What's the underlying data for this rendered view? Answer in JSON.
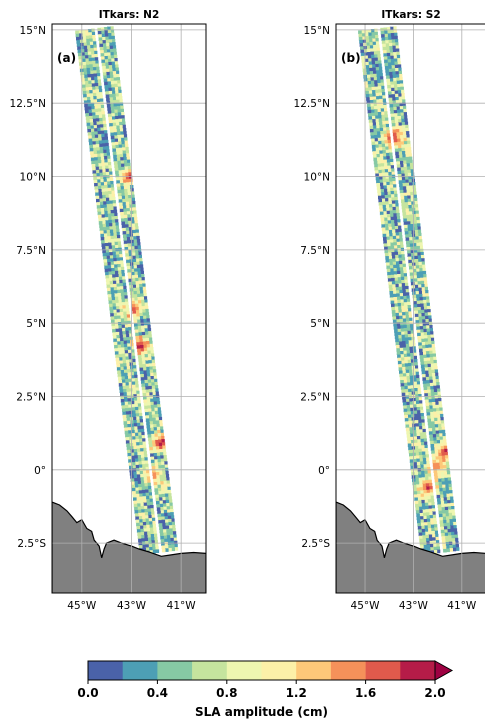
{
  "chart_data": [
    {
      "type": "heatmap",
      "title": "ITkars: N2",
      "panel_label": "(a)",
      "xlim": [
        -46.2,
        -40.0
      ],
      "ylim": [
        -4.2,
        15.2
      ],
      "x_ticks": [
        -45,
        -43,
        -41
      ],
      "x_tick_labels": [
        "45°W",
        "43°W",
        "41°W"
      ],
      "y_ticks": [
        15,
        12.5,
        10,
        7.5,
        5,
        2.5,
        0,
        -2.5
      ],
      "y_tick_labels": [
        "15°N",
        "12.5°N",
        "10°N",
        "7.5°N",
        "5°N",
        "2.5°N",
        "0°",
        "2.5°S"
      ],
      "y_tick_labels_shown": true,
      "grid": true,
      "swath_track": [
        {
          "lat": 15.0,
          "lon": -44.45
        },
        {
          "lat": -2.8,
          "lon": -41.85
        }
      ],
      "hotspots": [
        {
          "lat": 10.0,
          "lon": -43.1,
          "amp": 1.9
        },
        {
          "lat": 5.5,
          "lon": -42.9,
          "amp": 1.8
        },
        {
          "lat": 4.2,
          "lon": -42.65,
          "amp": 2.0
        },
        {
          "lat": 0.9,
          "lon": -41.85,
          "amp": 2.0
        },
        {
          "lat": -0.2,
          "lon": -42.2,
          "amp": 1.6
        }
      ]
    },
    {
      "type": "heatmap",
      "title": "ITkars: S2",
      "panel_label": "(b)",
      "xlim": [
        -46.2,
        -40.0
      ],
      "ylim": [
        -4.2,
        15.2
      ],
      "x_ticks": [
        -45,
        -43,
        -41
      ],
      "x_tick_labels": [
        "45°W",
        "43°W",
        "41°W"
      ],
      "y_ticks": [
        15,
        12.5,
        10,
        7.5,
        5,
        2.5,
        0,
        -2.5
      ],
      "y_tick_labels": [
        "15°N",
        "12.5°N",
        "10°N",
        "7.5°N",
        "5°N",
        "2.5°N",
        "0°",
        "2.5°S"
      ],
      "y_tick_labels_shown": true,
      "grid": true,
      "swath_track": [
        {
          "lat": 15.0,
          "lon": -44.45
        },
        {
          "lat": -2.8,
          "lon": -41.85
        }
      ],
      "hotspots": [
        {
          "lat": 11.3,
          "lon": -43.85,
          "amp": 2.0
        },
        {
          "lat": 13.7,
          "lon": -44.2,
          "amp": 0.1
        },
        {
          "lat": 0.6,
          "lon": -41.7,
          "amp": 2.0
        },
        {
          "lat": -0.6,
          "lon": -42.4,
          "amp": 2.0
        },
        {
          "lat": 0.1,
          "lon": -42.05,
          "amp": 1.7
        }
      ]
    }
  ],
  "colorbar": {
    "label": "SLA amplitude (cm)",
    "min": 0.0,
    "max": 2.0,
    "extend": "max",
    "ticks": [
      0.0,
      0.4,
      0.8,
      1.2,
      1.6,
      2.0
    ],
    "tick_labels": [
      "0.0",
      "0.4",
      "0.8",
      "1.2",
      "1.6",
      "2.0"
    ],
    "colors": [
      "#4a62a9",
      "#4d9fb5",
      "#86c9a4",
      "#c5e49e",
      "#eef6b0",
      "#fcf0a8",
      "#fdc879",
      "#f5915a",
      "#e05a4c",
      "#b51c48"
    ],
    "extend_color": "#9e0142"
  },
  "land_color": "#808080"
}
